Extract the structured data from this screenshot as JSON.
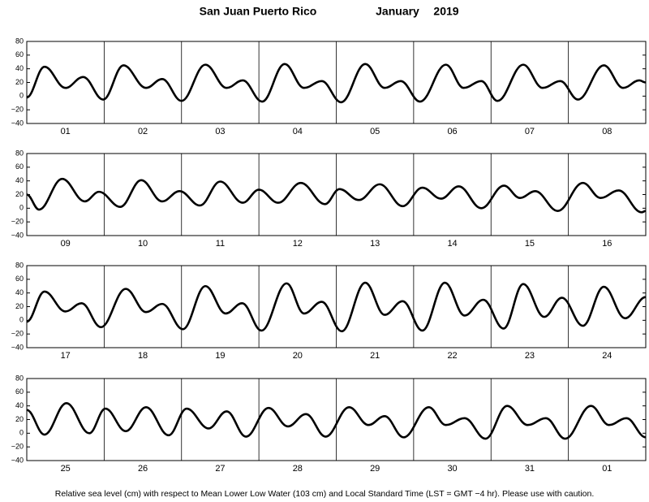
{
  "header": {
    "location": "San Juan Puerto Rico",
    "month": "January",
    "year": "2019"
  },
  "footnote": "Relative sea level (cm) with respect to Mean Lower Low Water (103 cm) and Local Standard Time (LST = GMT −4 hr). Please use with caution.",
  "chart_data": [
    {
      "type": "line",
      "color": "#000000",
      "categories": [
        "01",
        "02",
        "03",
        "04",
        "05",
        "06",
        "07",
        "08"
      ],
      "xlim": [
        0,
        192
      ],
      "ylim": [
        -40,
        80
      ],
      "yticks": [
        {
          "value": -40,
          "label": "−40"
        },
        {
          "value": -20,
          "label": "−20"
        },
        0,
        20,
        40,
        60,
        80
      ],
      "x": [
        0,
        5.5,
        12,
        17.5,
        23.7,
        30,
        37,
        42,
        48,
        55.4,
        62,
        67,
        73,
        80,
        86,
        91.5,
        97.5,
        105,
        111,
        116,
        122,
        130,
        135.5,
        141,
        146,
        154,
        160,
        165.5,
        171,
        179,
        185,
        190,
        192
      ],
      "values": [
        -2,
        43,
        12,
        28,
        -5,
        45,
        12,
        25,
        -7,
        46,
        12,
        23,
        -8,
        47,
        12,
        22,
        -9,
        47,
        12,
        22,
        -8,
        46,
        12,
        22,
        -7,
        46,
        12,
        22,
        -5,
        45,
        12,
        23,
        20
      ]
    },
    {
      "type": "line",
      "color": "#000000",
      "categories": [
        "09",
        "10",
        "11",
        "12",
        "13",
        "14",
        "15",
        "16"
      ],
      "xlim": [
        0,
        192
      ],
      "ylim": [
        -40,
        80
      ],
      "yticks": [
        {
          "value": -40,
          "label": "−40"
        },
        {
          "value": -20,
          "label": "−20"
        },
        0,
        20,
        40,
        60,
        80
      ],
      "x": [
        0,
        3.8,
        11,
        18,
        22.4,
        29,
        35.5,
        42,
        47.4,
        53.7,
        60,
        67,
        72,
        78,
        85,
        92.5,
        97,
        103,
        109.5,
        116.6,
        122.7,
        128.5,
        134,
        141,
        148,
        153,
        157.7,
        164.7,
        172.5,
        178,
        183.6,
        190.7,
        192
      ],
      "values": [
        20,
        -2,
        43,
        10,
        24,
        2,
        41,
        10,
        25,
        4,
        39,
        8,
        27,
        8,
        37,
        6,
        28,
        12,
        35,
        3,
        30,
        14,
        32,
        0,
        33,
        15,
        25,
        -4,
        37,
        15,
        26,
        -6,
        -4
      ]
    },
    {
      "type": "line",
      "color": "#000000",
      "categories": [
        "17",
        "18",
        "19",
        "20",
        "21",
        "22",
        "23",
        "24"
      ],
      "xlim": [
        0,
        192
      ],
      "ylim": [
        -40,
        80
      ],
      "yticks": [
        {
          "value": -40,
          "label": "−40"
        },
        {
          "value": -20,
          "label": "−20"
        },
        0,
        20,
        40,
        60,
        80
      ],
      "x": [
        0,
        5.5,
        12,
        17,
        23,
        30.7,
        37,
        42,
        48.4,
        55.4,
        61.7,
        66.8,
        72.8,
        80.6,
        86,
        91.5,
        97.7,
        105,
        111,
        116.6,
        122.7,
        129.7,
        135.8,
        141.6,
        147.9,
        154,
        160.5,
        166,
        172.5,
        179,
        185.6,
        192
      ],
      "values": [
        -2,
        42,
        13,
        25,
        -10,
        46,
        12,
        24,
        -13,
        50,
        10,
        25,
        -15,
        54,
        10,
        27,
        -16,
        55,
        8,
        28,
        -15,
        55,
        7,
        30,
        -12,
        53,
        5,
        33,
        -8,
        49,
        3,
        34
      ]
    },
    {
      "type": "line",
      "color": "#000000",
      "categories": [
        "25",
        "26",
        "27",
        "28",
        "29",
        "30",
        "31",
        "01"
      ],
      "xlim": [
        0,
        192
      ],
      "ylim": [
        -40,
        80
      ],
      "yticks": [
        {
          "value": -40,
          "label": "−40"
        },
        {
          "value": -20,
          "label": "−20"
        },
        0,
        20,
        40,
        60,
        80
      ],
      "x": [
        0,
        5.5,
        12.3,
        19.4,
        24.4,
        30.7,
        37,
        44,
        49.6,
        56.4,
        62,
        68,
        75,
        81,
        86.6,
        92.7,
        100,
        106,
        111,
        116.9,
        124.7,
        130,
        135.8,
        142.3,
        149,
        155.4,
        161,
        167,
        175,
        180.6,
        186,
        192
      ],
      "values": [
        34,
        -2,
        44,
        0,
        36,
        3,
        38,
        -3,
        36,
        7,
        32,
        -5,
        37,
        10,
        28,
        -5,
        38,
        12,
        25,
        -6,
        38,
        12,
        22,
        -8,
        40,
        12,
        22,
        -8,
        40,
        12,
        22,
        -6
      ]
    }
  ]
}
